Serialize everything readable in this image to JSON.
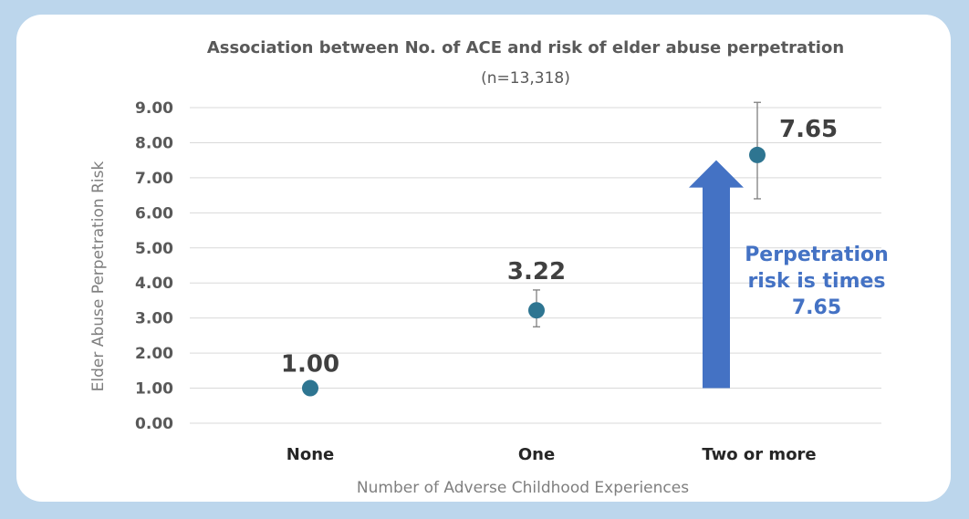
{
  "chart_data": {
    "type": "scatter",
    "title": "Association between No. of ACE and risk of elder abuse perpetration",
    "subtitle": "(n=13,318)",
    "xlabel": "Number of Adverse Childhood Experiences",
    "ylabel": "Elder Abuse Perpetration Risk",
    "categories": [
      "None",
      "One",
      "Two or more"
    ],
    "values": [
      1.0,
      3.22,
      7.65
    ],
    "value_labels": [
      "1.00",
      "3.22",
      "7.65"
    ],
    "error_bars": [
      {
        "low": 1.0,
        "high": 1.0
      },
      {
        "low": 2.75,
        "high": 3.8
      },
      {
        "low": 6.4,
        "high": 9.15
      }
    ],
    "ylim": [
      0,
      9
    ],
    "yticks": [
      "0.00",
      "1.00",
      "2.00",
      "3.00",
      "4.00",
      "5.00",
      "6.00",
      "7.00",
      "8.00",
      "9.00"
    ],
    "grid": true,
    "annotation": {
      "lines": [
        "Perpetration",
        "risk is times",
        "7.65"
      ],
      "arrow_from": 1.0,
      "arrow_to": 7.5
    },
    "colors": {
      "marker": "#2e7591",
      "arrow": "#4472c4",
      "annotation_text": "#4472c4",
      "grid": "#d9d9d9"
    }
  }
}
